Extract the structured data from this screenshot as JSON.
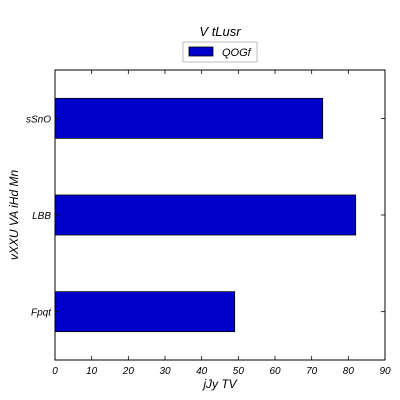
{
  "chart_data": {
    "type": "bar",
    "orientation": "horizontal",
    "title": "V tLusr",
    "xlabel": "jJy TV",
    "ylabel": "vXXU VA iHd Mn",
    "categories": [
      "Fpqt",
      "LBB",
      "sSnO"
    ],
    "series": [
      {
        "name": "QOGf",
        "values": [
          49,
          82,
          73
        ],
        "color": "#0000cc"
      }
    ],
    "xlim": [
      0,
      90
    ],
    "xticks": [
      "0",
      "10",
      "20",
      "30",
      "40",
      "50",
      "60",
      "70",
      "80",
      "90"
    ],
    "grid": false,
    "legend_position": "top-center"
  }
}
